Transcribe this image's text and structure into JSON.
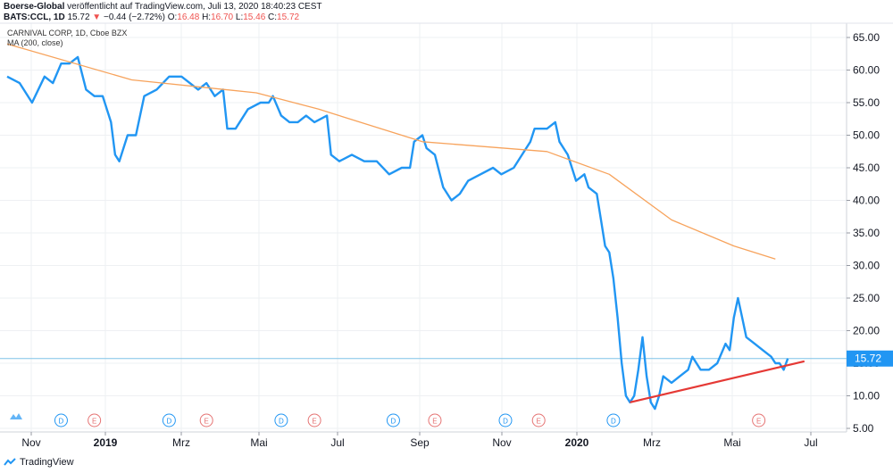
{
  "header": {
    "author": "Boerse-Global",
    "published": "veröffentlicht auf TradingView.com, Juli 13, 2020 18:40:23 CEST",
    "symbol": "BATS:CCL, 1D",
    "last": "15.72",
    "change_arrow": "▼",
    "change": "−0.44 (−2.72%)",
    "open_label": "O:",
    "open": "16.48",
    "high_label": "H:",
    "high": "16.70",
    "low_label": "L:",
    "low": "15.46",
    "close_label": "C:",
    "close": "15.72"
  },
  "legend": {
    "instrument": "CARNIVAL CORP, 1D, Cboe BZX",
    "ma": "MA (200, close)"
  },
  "footer": {
    "brand": "TradingView"
  },
  "colors": {
    "price": "#2196f3",
    "ma": "#f7a35c",
    "trend": "#e53935",
    "last_price_bg": "#2196f3",
    "grid": "#eef0f3",
    "dividend": "#2196f3",
    "earnings": "#e57373"
  },
  "chart_data": {
    "type": "line",
    "y_ticks": [
      "65.00",
      "60.00",
      "55.00",
      "50.00",
      "45.00",
      "40.00",
      "35.00",
      "30.00",
      "25.00",
      "20.00",
      "15.00",
      "10.00",
      "5.00"
    ],
    "ylim": [
      5,
      67
    ],
    "x_ticks": [
      "Nov",
      "2019",
      "Mrz",
      "Mai",
      "Jul",
      "Sep",
      "Nov",
      "2020",
      "Mrz",
      "Mai",
      "Jul"
    ],
    "last_price_label": "15.72",
    "grid": true,
    "series": [
      {
        "type": "price",
        "points": [
          [
            0,
            59
          ],
          [
            3,
            58
          ],
          [
            6,
            55
          ],
          [
            9,
            59
          ],
          [
            11,
            58
          ],
          [
            13,
            61
          ],
          [
            15,
            61
          ],
          [
            17,
            62
          ],
          [
            19,
            57
          ],
          [
            21,
            56
          ],
          [
            23,
            56
          ],
          [
            25,
            52
          ],
          [
            26,
            47
          ],
          [
            27,
            46
          ],
          [
            29,
            50
          ],
          [
            31,
            50
          ],
          [
            33,
            56
          ],
          [
            36,
            57
          ],
          [
            39,
            59
          ],
          [
            42,
            59
          ],
          [
            44,
            58
          ],
          [
            46,
            57
          ],
          [
            48,
            58
          ],
          [
            50,
            56
          ],
          [
            52,
            57
          ],
          [
            53,
            51
          ],
          [
            55,
            51
          ],
          [
            58,
            54
          ],
          [
            61,
            55
          ],
          [
            63,
            55
          ],
          [
            64,
            56
          ],
          [
            66,
            53
          ],
          [
            68,
            52
          ],
          [
            70,
            52
          ],
          [
            72,
            53
          ],
          [
            74,
            52
          ],
          [
            77,
            53
          ],
          [
            78,
            47
          ],
          [
            80,
            46
          ],
          [
            83,
            47
          ],
          [
            86,
            46
          ],
          [
            89,
            46
          ],
          [
            92,
            44
          ],
          [
            95,
            45
          ],
          [
            97,
            45
          ],
          [
            98,
            49
          ],
          [
            100,
            50
          ],
          [
            101,
            48
          ],
          [
            103,
            47
          ],
          [
            105,
            42
          ],
          [
            107,
            40
          ],
          [
            109,
            41
          ],
          [
            111,
            43
          ],
          [
            114,
            44
          ],
          [
            117,
            45
          ],
          [
            119,
            44
          ],
          [
            122,
            45
          ],
          [
            124,
            47
          ],
          [
            126,
            49
          ],
          [
            127,
            51
          ],
          [
            130,
            51
          ],
          [
            132,
            52
          ],
          [
            133,
            49
          ],
          [
            135,
            47
          ],
          [
            137,
            43
          ],
          [
            139,
            44
          ],
          [
            140,
            42
          ],
          [
            142,
            41
          ],
          [
            143,
            37
          ],
          [
            144,
            33
          ],
          [
            145,
            32
          ],
          [
            146,
            28
          ],
          [
            147,
            22
          ],
          [
            148,
            15
          ],
          [
            149,
            10
          ],
          [
            150,
            9
          ],
          [
            151,
            10
          ],
          [
            152,
            14
          ],
          [
            153,
            19
          ],
          [
            154,
            13
          ],
          [
            155,
            9
          ],
          [
            156,
            8
          ],
          [
            157,
            10
          ],
          [
            158,
            13
          ],
          [
            160,
            12
          ],
          [
            162,
            13
          ],
          [
            164,
            14
          ],
          [
            165,
            16
          ],
          [
            167,
            14
          ],
          [
            169,
            14
          ],
          [
            171,
            15
          ],
          [
            173,
            18
          ],
          [
            174,
            17
          ],
          [
            175,
            22
          ],
          [
            176,
            25
          ],
          [
            177,
            22
          ],
          [
            178,
            19
          ],
          [
            180,
            18
          ],
          [
            182,
            17
          ],
          [
            184,
            16
          ],
          [
            185,
            15
          ],
          [
            186,
            15
          ],
          [
            187,
            14
          ],
          [
            188,
            15.72
          ]
        ]
      },
      {
        "type": "ma200",
        "points": [
          [
            0,
            64
          ],
          [
            30,
            58.5
          ],
          [
            60,
            56.5
          ],
          [
            75,
            54
          ],
          [
            100,
            49
          ],
          [
            130,
            47.5
          ],
          [
            145,
            44
          ],
          [
            160,
            37
          ],
          [
            175,
            33
          ],
          [
            185,
            31
          ]
        ]
      },
      {
        "type": "trend",
        "points": [
          [
            150,
            9
          ],
          [
            192,
            15.3
          ]
        ]
      }
    ],
    "events": [
      {
        "day": 13,
        "label": "D"
      },
      {
        "day": 21,
        "label": "E"
      },
      {
        "day": 39,
        "label": "D"
      },
      {
        "day": 48,
        "label": "E"
      },
      {
        "day": 66,
        "label": "D"
      },
      {
        "day": 74,
        "label": "E"
      },
      {
        "day": 93,
        "label": "D"
      },
      {
        "day": 103,
        "label": "E"
      },
      {
        "day": 120,
        "label": "D"
      },
      {
        "day": 128,
        "label": "E"
      },
      {
        "day": 146,
        "label": "D"
      },
      {
        "day": 181,
        "label": "E"
      }
    ]
  }
}
